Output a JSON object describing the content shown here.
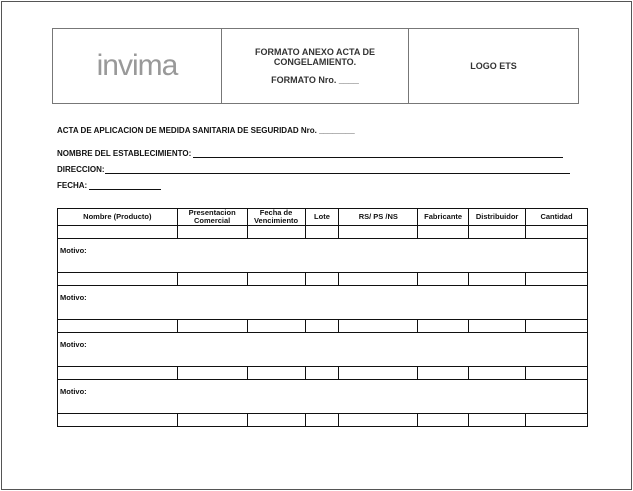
{
  "header": {
    "logo_text": "invima",
    "title_line1": "FORMATO ANEXO ACTA DE",
    "title_line2": "CONGELAMIENTO.",
    "formato_label": "FORMATO Nro. ____",
    "logo_ets": "LOGO ETS"
  },
  "acta_title": "ACTA DE APLICACION DE MEDIDA SANITARIA DE SEGURIDAD Nro. ________",
  "fields": {
    "establecimiento": "NOMBRE DEL ESTABLECIMIENTO:",
    "direccion": "DIRECCION:",
    "fecha": "FECHA:"
  },
  "table": {
    "columns": [
      "Nombre (Producto)",
      "Presentacion Comercial",
      "Fecha de Vencimiento",
      "Lote",
      "RS/ PS /NS",
      "Fabricante",
      "Distribuidor",
      "Cantidad"
    ],
    "motivo_label": "Motivo:"
  }
}
